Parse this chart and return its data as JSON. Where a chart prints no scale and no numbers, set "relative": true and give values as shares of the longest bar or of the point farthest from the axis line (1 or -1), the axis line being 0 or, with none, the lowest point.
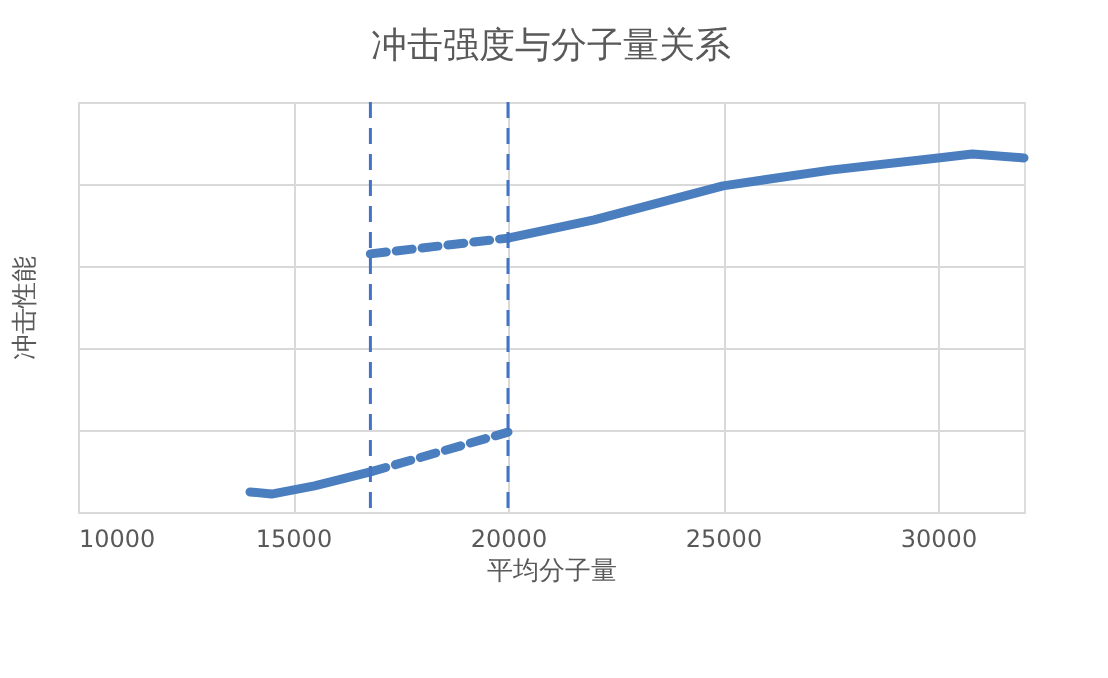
{
  "chart_data": {
    "type": "line",
    "title": "冲击强度与分子量关系",
    "xlabel": "平均分子量",
    "ylabel": "冲击性能",
    "relative": true,
    "xlim": [
      10000,
      32000
    ],
    "xticks": [
      10000,
      15000,
      20000,
      25000,
      30000
    ],
    "grid": true,
    "marker": "none",
    "series": [
      {
        "color": "#4a7ebf",
        "line_style": "solid",
        "x": [
          14000,
          14500,
          15500,
          16800
        ],
        "values": [
          0.056,
          0.05,
          0.073,
          0.112
        ]
      },
      {
        "color": "#4a7ebf",
        "line_style": "dashed",
        "x": [
          16800,
          20000
        ],
        "values": [
          0.112,
          0.223
        ]
      },
      {
        "color": "#4a7ebf",
        "line_style": "dashed",
        "x": [
          16800,
          20000
        ],
        "values": [
          0.721,
          0.765
        ]
      },
      {
        "color": "#4a7ebf",
        "line_style": "solid",
        "x": [
          20000,
          22000,
          25000,
          27500,
          30000,
          30800,
          32000
        ],
        "values": [
          0.765,
          0.816,
          0.911,
          0.955,
          0.989,
          1,
          0.989
        ]
      }
    ],
    "ref_lines": [
      {
        "axis": "x",
        "value": 16800,
        "color": "#4472c4",
        "line_style": "dashed"
      },
      {
        "axis": "x",
        "value": 20000,
        "color": "#4472c4",
        "line_style": "dashed"
      }
    ]
  }
}
